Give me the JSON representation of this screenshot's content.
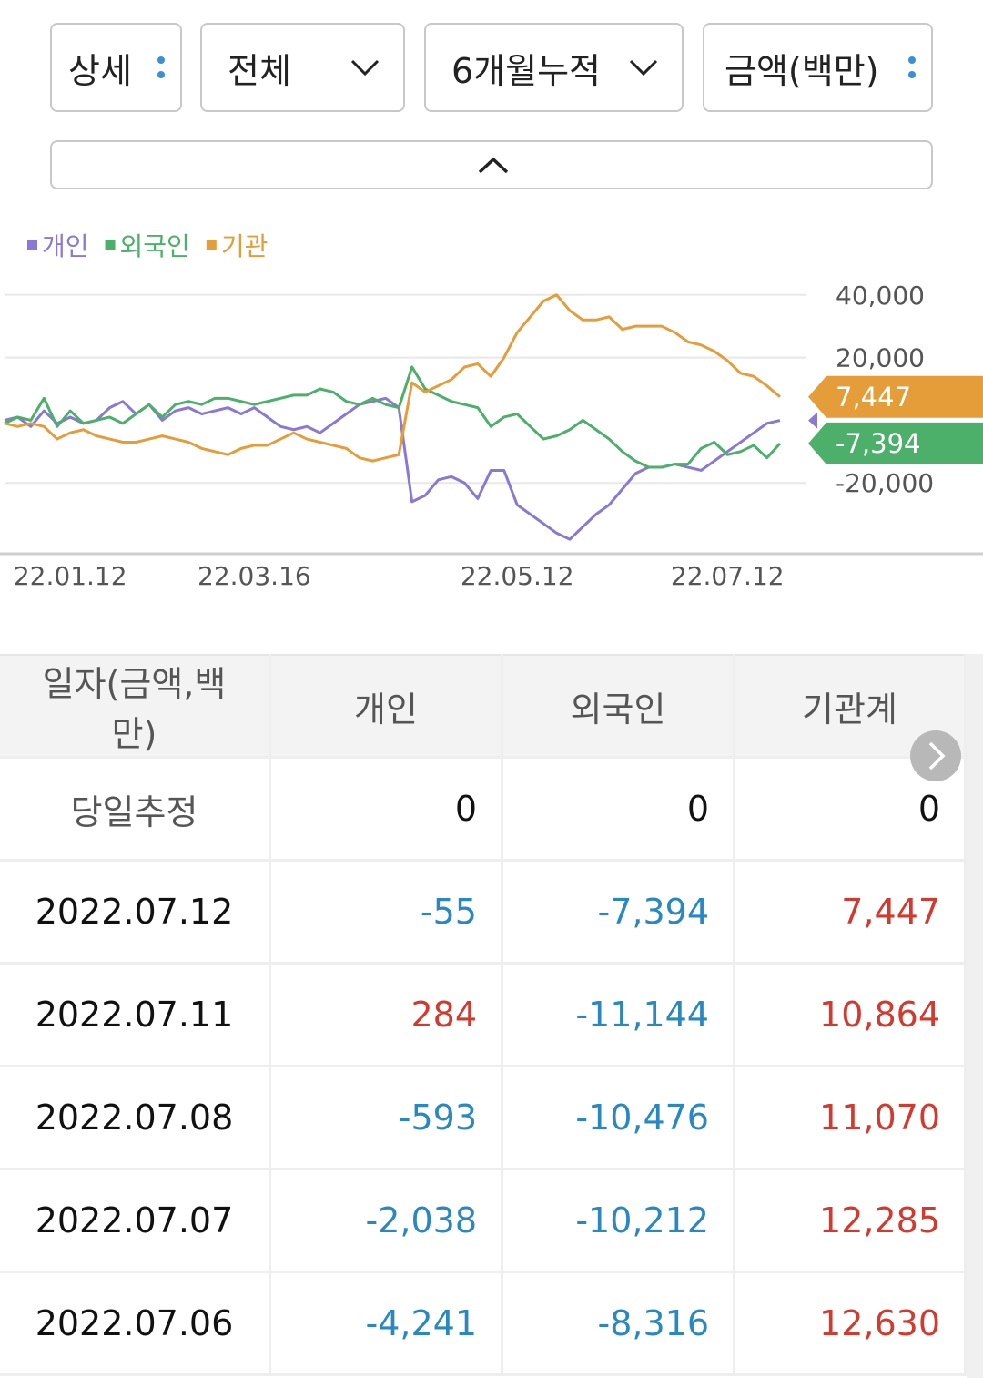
{
  "controls": {
    "buttons": [
      "상세",
      "전체",
      "6개월누적",
      "금액(백만)"
    ]
  },
  "chart_data": {
    "type": "line",
    "categories": [
      null,
      null,
      null,
      null,
      null,
      "22.01.12",
      null,
      null,
      null,
      null,
      null,
      null,
      null,
      null,
      null,
      null,
      null,
      null,
      null,
      "22.03.16",
      null,
      null,
      null,
      null,
      null,
      null,
      null,
      null,
      null,
      null,
      null,
      null,
      null,
      null,
      null,
      null,
      null,
      null,
      null,
      "22.05.12",
      null,
      null,
      null,
      null,
      null,
      null,
      null,
      null,
      null,
      null,
      null,
      null,
      null,
      null,
      null,
      "22.07.12",
      null,
      null,
      null,
      null
    ],
    "series": [
      {
        "name": "개인",
        "color": "#8a78d6",
        "values": [
          0,
          1000,
          -2000,
          3000,
          -1000,
          1000,
          -1000,
          0,
          4000,
          6000,
          2000,
          5000,
          0,
          3000,
          4000,
          2000,
          3000,
          4000,
          2000,
          4000,
          1000,
          -2000,
          -3000,
          -2000,
          -4000,
          -1000,
          2000,
          5000,
          6000,
          7000,
          4000,
          -26000,
          -24000,
          -19000,
          -18000,
          -20000,
          -25000,
          -16000,
          -16000,
          -27000,
          -30000,
          -33000,
          -36000,
          -38000,
          -34000,
          -30000,
          -27000,
          -22000,
          -17000,
          -15000,
          -15000,
          -14000,
          -15000,
          -16000,
          -13000,
          -10000,
          -7000,
          -4000,
          -1000,
          -55
        ]
      },
      {
        "name": "외국인",
        "color": "#4caf6a",
        "end_label": "-7,394",
        "values": [
          -1000,
          1000,
          0,
          7000,
          -2000,
          3000,
          -1000,
          0,
          1000,
          -1000,
          2000,
          5000,
          1000,
          5000,
          6000,
          5000,
          7000,
          7000,
          6000,
          5000,
          6000,
          7000,
          8000,
          8000,
          10000,
          9000,
          6000,
          5000,
          7000,
          5000,
          4000,
          17000,
          10000,
          8000,
          6000,
          5000,
          4000,
          -2000,
          1000,
          2000,
          -2000,
          -6000,
          -5000,
          -3000,
          0,
          -3000,
          -6000,
          -10000,
          -13000,
          -15000,
          -15000,
          -14000,
          -14000,
          -9000,
          -7000,
          -11000,
          -10000,
          -8000,
          -12000,
          -7394
        ]
      },
      {
        "name": "기관",
        "color": "#e59d3a",
        "end_label": "7,447",
        "values": [
          -1000,
          -2000,
          -1000,
          -2000,
          -6000,
          -4000,
          -3000,
          -5000,
          -6000,
          -7000,
          -7000,
          -6000,
          -5000,
          -6000,
          -7000,
          -9000,
          -10000,
          -11000,
          -9000,
          -8000,
          -8000,
          -6000,
          -4000,
          -6000,
          -7000,
          -8000,
          -9000,
          -12000,
          -13000,
          -12000,
          -11000,
          12000,
          9000,
          11000,
          13000,
          17000,
          18000,
          14000,
          20000,
          28000,
          33000,
          38000,
          40000,
          35000,
          32000,
          32000,
          33000,
          29000,
          30000,
          30000,
          30000,
          28000,
          25000,
          24000,
          22000,
          19000,
          15000,
          14000,
          11000,
          7447
        ]
      }
    ],
    "ylim": [
      -42600,
      44000
    ],
    "yticks": [
      {
        "value": 40000,
        "label": "40,000"
      },
      {
        "value": 20000,
        "label": "20,000"
      },
      {
        "value": -20000,
        "label": "-20,000"
      }
    ],
    "grid": true,
    "legend": "top-left"
  },
  "table": {
    "header": [
      "일자(금액,백만)",
      "개인",
      "외국인",
      "기관계"
    ],
    "rows": [
      [
        "당일추정",
        "0",
        "0",
        "0"
      ],
      [
        "2022.07.12",
        "-55",
        "-7,394",
        "7,447"
      ],
      [
        "2022.07.11",
        "284",
        "-11,144",
        "10,864"
      ],
      [
        "2022.07.08",
        "-593",
        "-10,476",
        "11,070"
      ],
      [
        "2022.07.07",
        "-2,038",
        "-10,212",
        "12,285"
      ],
      [
        "2022.07.06",
        "-4,241",
        "-8,316",
        "12,630"
      ]
    ]
  }
}
